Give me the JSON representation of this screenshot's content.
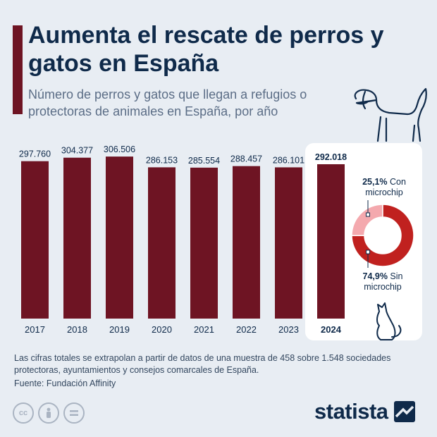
{
  "header": {
    "title": "Aumenta el rescate de perros y gatos en España",
    "subtitle": "Número de perros y gatos que llegan a refugios o protectoras de animales en España, por año"
  },
  "chart_data": {
    "type": "bar",
    "title": "Aumenta el rescate de perros y gatos en España",
    "subtitle": "Número de perros y gatos que llegan a refugios o protectoras de animales en España, por año",
    "categories": [
      "2017",
      "2018",
      "2019",
      "2020",
      "2021",
      "2022",
      "2023",
      "2024"
    ],
    "values": [
      297760,
      304377,
      306506,
      286153,
      285554,
      288457,
      286101,
      292018
    ],
    "labels": [
      "297.760",
      "304.377",
      "306.506",
      "286.153",
      "285.554",
      "288.457",
      "286.101",
      "292.018"
    ],
    "highlighted": "2024",
    "bar_color": "#6e1423",
    "ylim": [
      0,
      320000
    ],
    "grid": false,
    "inset": {
      "type": "pie",
      "slices": [
        {
          "name": "Con microchip",
          "value": 25.1,
          "pct_label": "25,1%",
          "label_rest": "Con",
          "label_line2": "microchip",
          "color": "#f4a9ae"
        },
        {
          "name": "Sin microchip",
          "value": 74.9,
          "pct_label": "74,9%",
          "label_rest": "Sin",
          "label_line2": "microchip",
          "color": "#c0211f"
        }
      ]
    }
  },
  "footer": {
    "note": "Las cifras totales se extrapolan a partir de datos de una muestra de 458 sobre 1.548 sociedades protectoras, ayuntamientos y consejos comarcales de España.",
    "source": "Fuente: Fundación Affinity",
    "license_icons": [
      "cc-icon",
      "person-icon",
      "equal-icon"
    ],
    "brand": "statista"
  },
  "colors": {
    "background": "#e8edf3",
    "accent": "#6e1423",
    "title": "#0f2a4a"
  }
}
